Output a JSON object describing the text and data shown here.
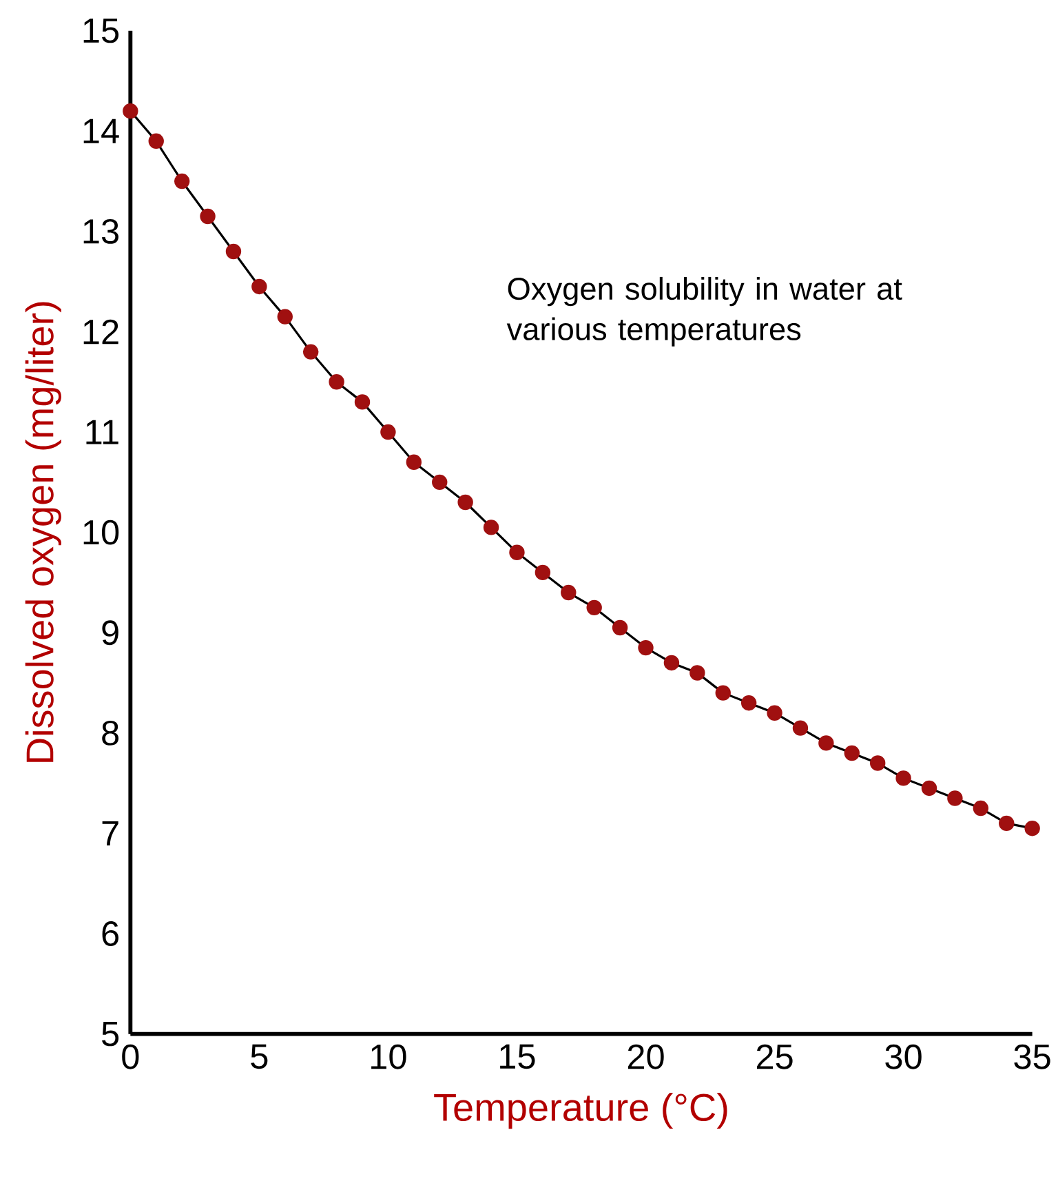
{
  "chart_data": {
    "type": "line",
    "xlabel": "Temperature (°C)",
    "ylabel": "Dissolved oxygen (mg/liter)",
    "annotations": [
      "Oxygen solubility in water at various temperatures"
    ],
    "x": [
      0,
      1,
      2,
      3,
      4,
      5,
      6,
      7,
      8,
      9,
      10,
      11,
      12,
      13,
      14,
      15,
      16,
      17,
      18,
      19,
      20,
      21,
      22,
      23,
      24,
      25,
      26,
      27,
      28,
      29,
      30,
      31,
      32,
      33,
      34,
      35
    ],
    "series": [
      {
        "color": "#a01010",
        "values": [
          14.2,
          13.9,
          13.5,
          13.15,
          12.8,
          12.45,
          12.15,
          11.8,
          11.5,
          11.3,
          11.0,
          10.7,
          10.5,
          10.3,
          10.05,
          9.8,
          9.6,
          9.4,
          9.25,
          9.05,
          8.85,
          8.7,
          8.6,
          8.4,
          8.3,
          8.2,
          8.05,
          7.9,
          7.8,
          7.7,
          7.55,
          7.45,
          7.35,
          7.25,
          7.1,
          7.05
        ]
      }
    ],
    "xlim": [
      0,
      35
    ],
    "ylim": [
      5,
      15
    ],
    "xticks": [
      0,
      5,
      10,
      15,
      20,
      25,
      30,
      35
    ],
    "yticks": [
      5,
      6,
      7,
      8,
      9,
      10,
      11,
      12,
      13,
      14,
      15
    ],
    "grid": false,
    "marker": "circle",
    "line_style": "solid"
  }
}
